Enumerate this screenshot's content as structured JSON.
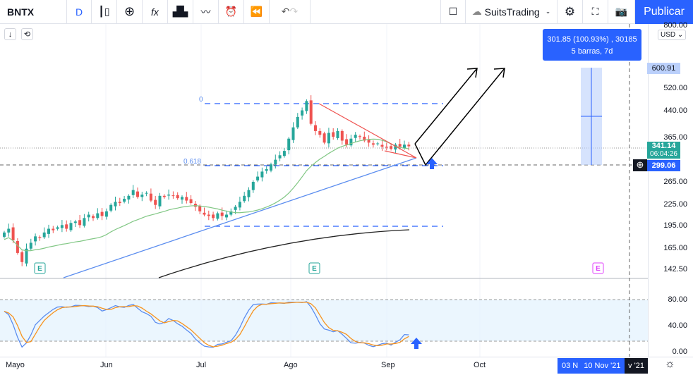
{
  "toolbar": {
    "symbol": "BNTX",
    "interval": "D",
    "layout_name": "SuitsTrading",
    "publish": "Publicar"
  },
  "tooltip": {
    "line1": "301.85 (100.93%) , 30185",
    "line2": "5 barras, 7d"
  },
  "price_axis": {
    "currency": "USD",
    "labels": [
      "800.00",
      "520.00",
      "440.00",
      "365.00",
      "265.00",
      "225.00",
      "195.00",
      "165.00",
      "142.50"
    ],
    "tag_top": "600.91",
    "tag_last": "341.14",
    "tag_countdown": "06:04:26",
    "tag_cross": "299.06"
  },
  "osc_axis": {
    "labels": [
      "80.00",
      "40.00",
      "0.00"
    ]
  },
  "time_axis": {
    "labels": [
      "Mayo",
      "Jun",
      "Jul",
      "Ago",
      "Sep",
      "Oct"
    ],
    "cursor_date": "10 Nov '21",
    "cursor_left": "03 N",
    "cursor_right": "v '21"
  },
  "fib": {
    "level0": "0",
    "level618": "0.618"
  },
  "earnings": [
    "E",
    "E",
    "E"
  ],
  "colors": {
    "up": "#26a69a",
    "down": "#ef5350",
    "accent": "#2962ff",
    "ma50": "#81c784",
    "stochK": "#5b8def",
    "stochD": "#f7931e"
  },
  "chart_data": {
    "type": "candlestick",
    "closes": [
      185,
      190,
      175,
      160,
      150,
      165,
      172,
      180,
      178,
      185,
      190,
      188,
      192,
      195,
      190,
      198,
      200,
      195,
      205,
      210,
      205,
      212,
      208,
      215,
      225,
      230,
      228,
      235,
      240,
      250,
      238,
      242,
      245,
      232,
      225,
      240,
      238,
      242,
      240,
      236,
      238,
      232,
      228,
      222,
      215,
      210,
      208,
      205,
      212,
      208,
      210,
      215,
      222,
      230,
      240,
      250,
      265,
      275,
      285,
      290,
      300,
      310,
      320,
      330,
      360,
      390,
      420,
      440,
      470,
      400,
      380,
      370,
      350,
      375,
      365,
      380,
      355,
      345,
      360,
      370,
      365,
      355,
      350,
      345,
      348,
      340,
      338,
      335,
      345,
      340,
      345,
      341
    ]
  }
}
